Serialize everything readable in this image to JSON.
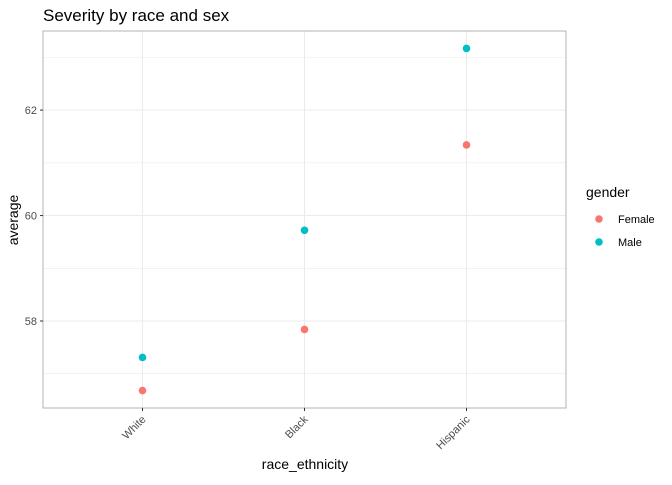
{
  "chart_data": {
    "type": "scatter",
    "title": "Severity by race and sex",
    "xlabel": "race_ethnicity",
    "ylabel": "average",
    "categories": [
      "White",
      "Black",
      "Hispanic"
    ],
    "yticks": [
      58,
      60,
      62
    ],
    "ylim": [
      56.35,
      63.5
    ],
    "grid": true,
    "legend_title": "gender",
    "legend_position": "right",
    "series": [
      {
        "name": "Female",
        "color": "#F8766D",
        "values": [
          56.68,
          57.84,
          61.34
        ]
      },
      {
        "name": "Male",
        "color": "#00BFC4",
        "values": [
          57.31,
          59.72,
          63.17
        ]
      }
    ]
  }
}
